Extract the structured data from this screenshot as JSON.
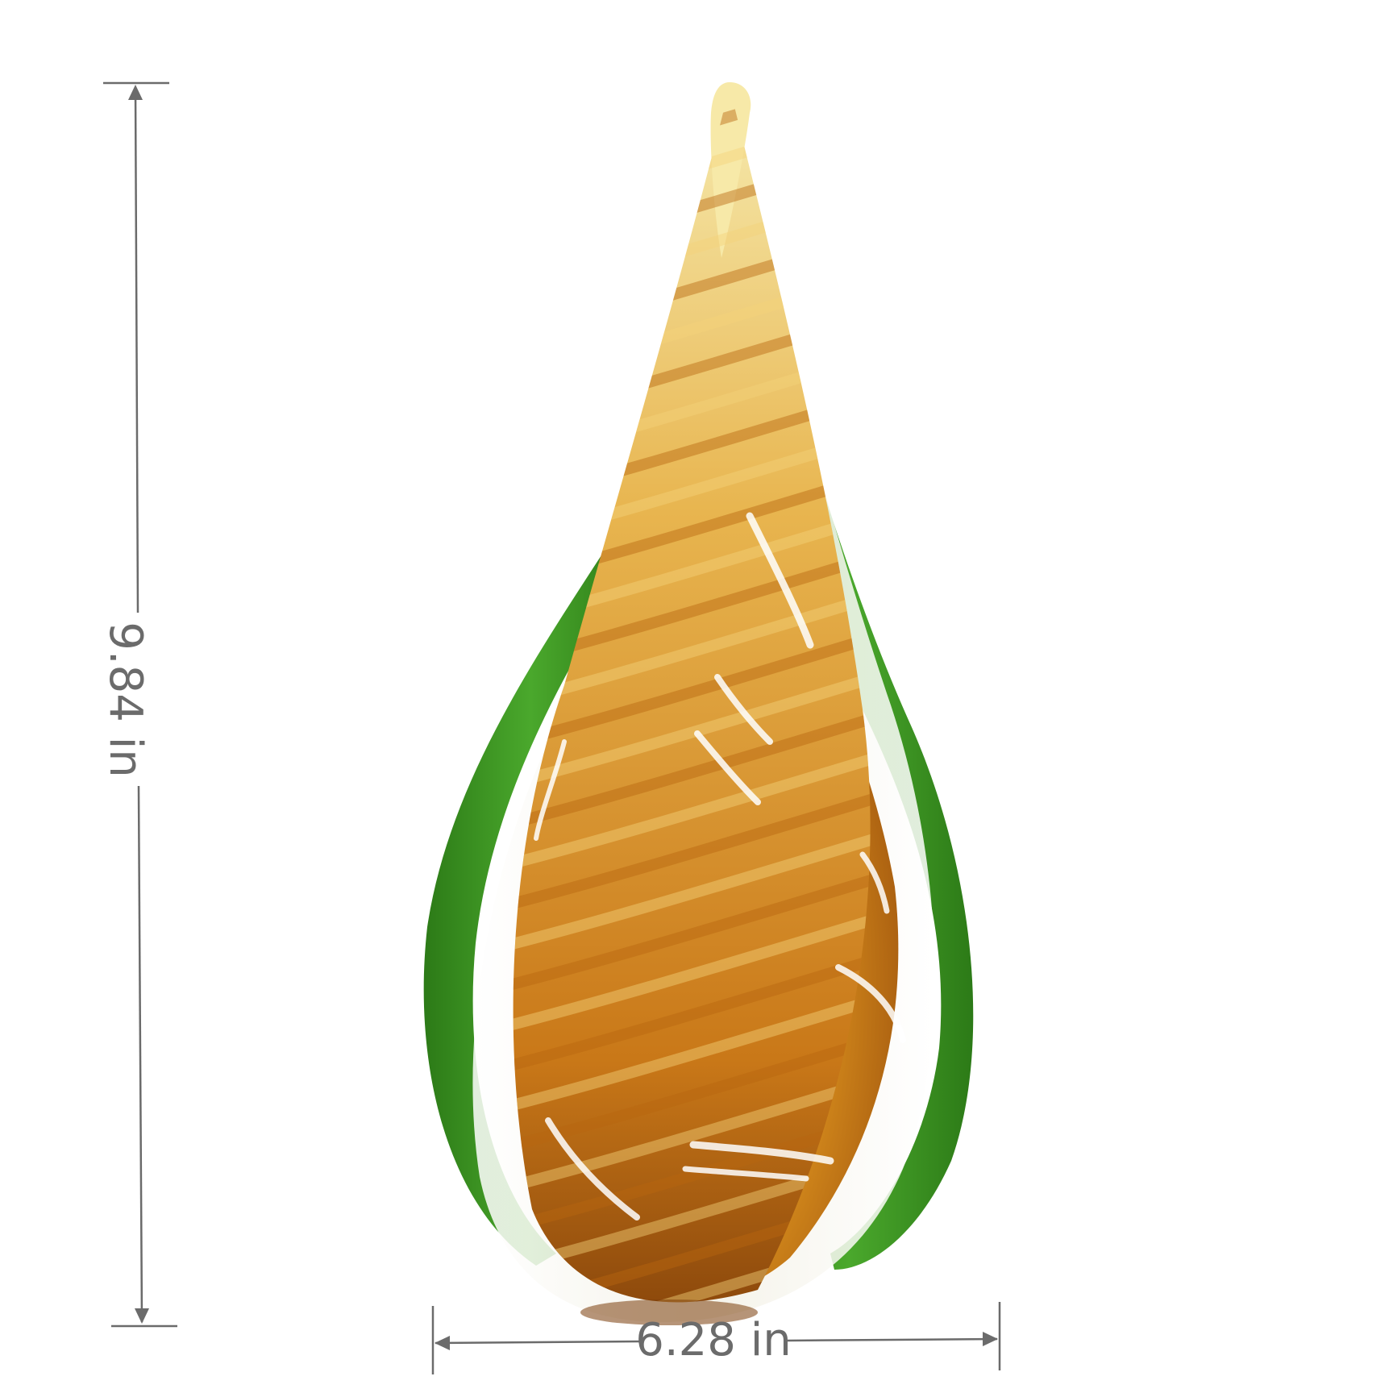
{
  "image": {
    "subject": "glass-teardrop-sculpture",
    "background_color": "#ffffff"
  },
  "dimensions": {
    "height_label": "9.84 in",
    "width_label": "6.28 in",
    "line_color": "#6b6b6b"
  },
  "colors": {
    "outer_green": "#3f9a24",
    "outer_green_dark": "#2c7a17",
    "clear_glass": "#f3f1e6",
    "amber": "#d48a1c",
    "amber_dark": "#9a4f0c",
    "cream": "#f7e9a8",
    "streak": "#ffffff"
  }
}
